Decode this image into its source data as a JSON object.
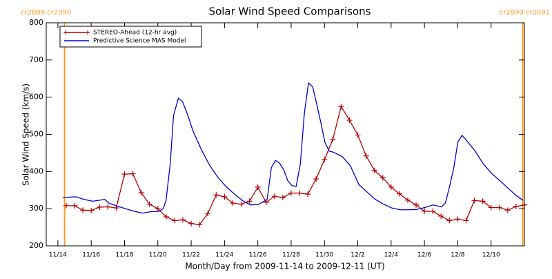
{
  "chart_data": {
    "type": "line",
    "title": "Solar Wind Speed Comparisons",
    "xlabel": "Month/Day from 2009-11-14 to 2009-12-11 (UT)",
    "ylabel": "Solar Wind Speed (km/s)",
    "xlim": [
      -0.7,
      28.0
    ],
    "xticks": [
      {
        "value": 0,
        "label": "11/14"
      },
      {
        "value": 2,
        "label": "11/16"
      },
      {
        "value": 4,
        "label": "11/18"
      },
      {
        "value": 6,
        "label": "11/20"
      },
      {
        "value": 8,
        "label": "11/22"
      },
      {
        "value": 10,
        "label": "11/24"
      },
      {
        "value": 12,
        "label": "11/26"
      },
      {
        "value": 14,
        "label": "11/28"
      },
      {
        "value": 16,
        "label": "11/30"
      },
      {
        "value": 18,
        "label": "12/2"
      },
      {
        "value": 20,
        "label": "12/4"
      },
      {
        "value": 22,
        "label": "12/6"
      },
      {
        "value": 24,
        "label": "12/8"
      },
      {
        "value": 26,
        "label": "12/10"
      }
    ],
    "ylim": [
      200,
      800
    ],
    "yticks": [
      200,
      300,
      400,
      500,
      600,
      700,
      800
    ],
    "grid": false,
    "legend": "upper left",
    "rotation_boundaries": [
      {
        "x": 0.4,
        "label": "cr2089 cr2090",
        "color": "#ff9a1f"
      },
      {
        "x": 27.9,
        "label": "cr2090 cr2091",
        "color": "#ff9a1f"
      }
    ],
    "series": [
      {
        "name": "STEREO-Ahead (12-hr avg)",
        "color": "#b40000",
        "marker": "+",
        "x": [
          0.5,
          1,
          1.5,
          2,
          2.5,
          3,
          3.5,
          4,
          4.5,
          5,
          5.5,
          6,
          6.5,
          7,
          7.5,
          8,
          8.5,
          9,
          9.5,
          10,
          10.5,
          11,
          11.5,
          12,
          12.5,
          13,
          13.5,
          14,
          14.5,
          15,
          15.5,
          16,
          16.5,
          17,
          17.5,
          18,
          18.5,
          19,
          19.5,
          20,
          20.5,
          21,
          21.5,
          22,
          22.5,
          23,
          23.5,
          24,
          24.5,
          25,
          25.5,
          26,
          26.5,
          27,
          27.5,
          28
        ],
        "values": [
          308,
          308,
          296,
          295,
          304,
          305,
          302,
          393,
          394,
          343,
          312,
          300,
          278,
          268,
          270,
          260,
          257,
          287,
          337,
          332,
          315,
          312,
          320,
          358,
          317,
          333,
          330,
          342,
          342,
          339,
          380,
          432,
          486,
          575,
          538,
          498,
          442,
          403,
          383,
          358,
          340,
          323,
          310,
          293,
          293,
          280,
          268,
          272,
          268,
          322,
          320,
          303,
          303,
          296,
          306,
          310
        ]
      },
      {
        "name": "Predictive Science MAS Model",
        "color": "#0000d0",
        "marker": "none",
        "x": [
          0.29,
          1.07,
          1.57,
          2.07,
          2.56,
          2.81,
          3.06,
          3.55,
          4.05,
          4.59,
          5.08,
          5.58,
          6.07,
          6.32,
          6.49,
          6.74,
          6.94,
          7.23,
          7.48,
          7.77,
          8.1,
          8.6,
          9.09,
          9.59,
          10.08,
          10.58,
          11.07,
          11.57,
          12.07,
          12.56,
          12.81,
          13.06,
          13.31,
          13.55,
          13.8,
          14.05,
          14.3,
          14.55,
          14.79,
          15.04,
          15.29,
          15.54,
          15.79,
          16.03,
          16.28,
          16.53,
          17.07,
          17.56,
          18.06,
          18.55,
          19.05,
          19.55,
          20.04,
          20.54,
          21.03,
          21.53,
          22.02,
          22.52,
          23.02,
          23.26,
          23.51,
          23.76,
          24.01,
          24.26,
          24.5,
          25.04,
          25.54,
          26.03,
          26.53,
          27.02,
          27.52,
          27.93
        ],
        "values": [
          330,
          332,
          325,
          320,
          323,
          325,
          315,
          307,
          300,
          293,
          288,
          292,
          293,
          300,
          322,
          420,
          550,
          597,
          588,
          555,
          510,
          460,
          418,
          385,
          360,
          340,
          322,
          310,
          312,
          325,
          410,
          430,
          422,
          405,
          375,
          362,
          360,
          420,
          555,
          638,
          628,
          580,
          530,
          478,
          455,
          452,
          440,
          415,
          365,
          345,
          325,
          312,
          302,
          297,
          297,
          298,
          303,
          310,
          305,
          315,
          360,
          410,
          480,
          497,
          485,
          455,
          420,
          395,
          375,
          355,
          335,
          322
        ]
      }
    ]
  }
}
